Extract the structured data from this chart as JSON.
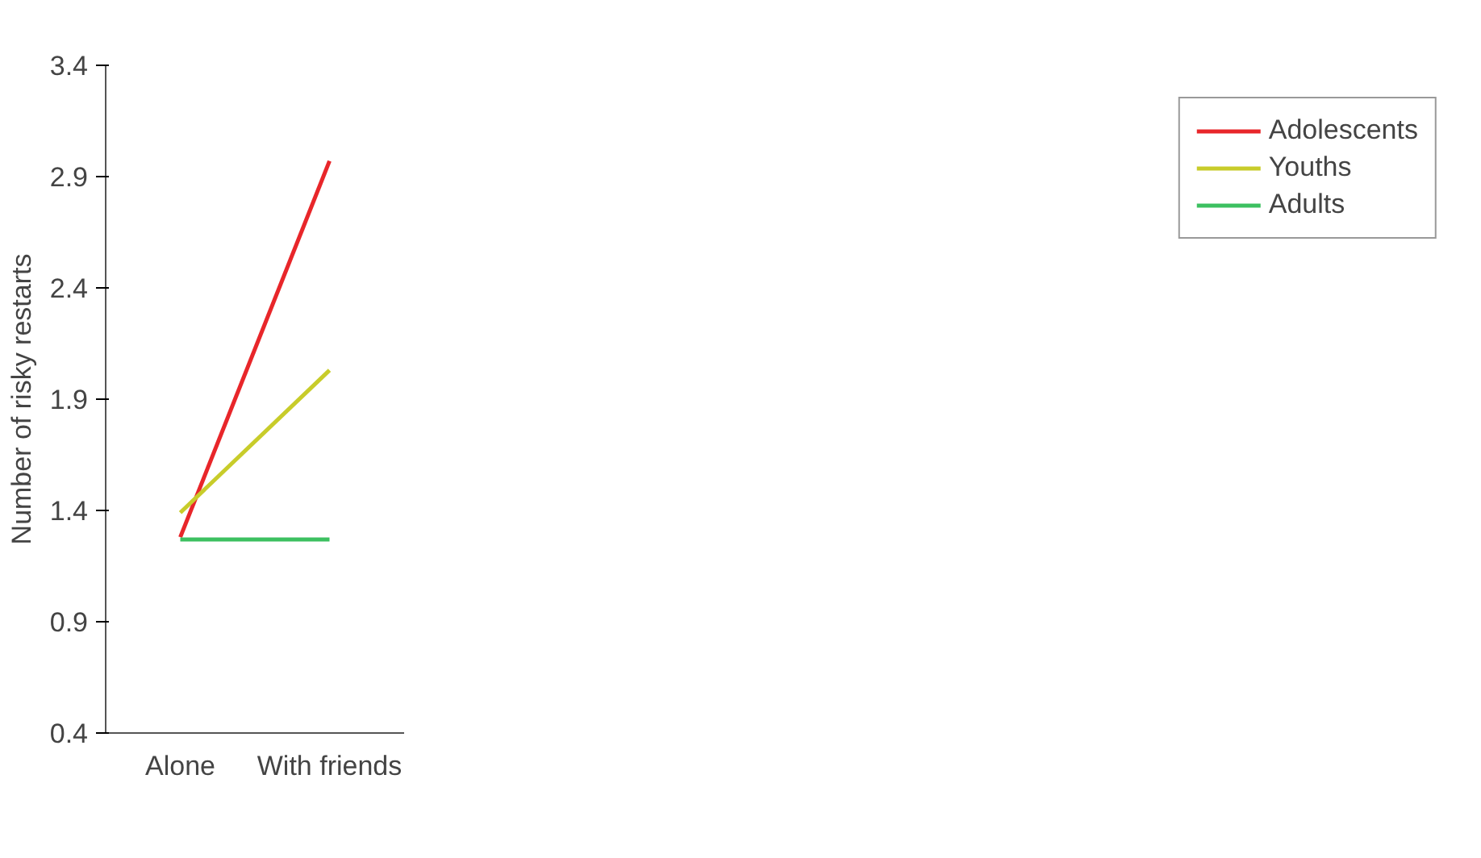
{
  "chart_data": {
    "type": "line",
    "ylabel": "Number of risky restarts",
    "categories": [
      "Alone",
      "With friends"
    ],
    "series": [
      {
        "name": "Adolescents",
        "color": "#e8262a",
        "values": [
          1.28,
          2.97
        ]
      },
      {
        "name": "Youths",
        "color": "#c8cc2a",
        "values": [
          1.39,
          2.03
        ]
      },
      {
        "name": "Adults",
        "color": "#3cc060",
        "values": [
          1.27,
          1.27
        ]
      }
    ],
    "ylim": [
      0.4,
      3.4
    ],
    "yticks": [
      0.4,
      0.9,
      1.4,
      1.9,
      2.4,
      2.9,
      3.4
    ],
    "grid": false,
    "legend": "right",
    "marker": "none",
    "line_style": "solid"
  }
}
